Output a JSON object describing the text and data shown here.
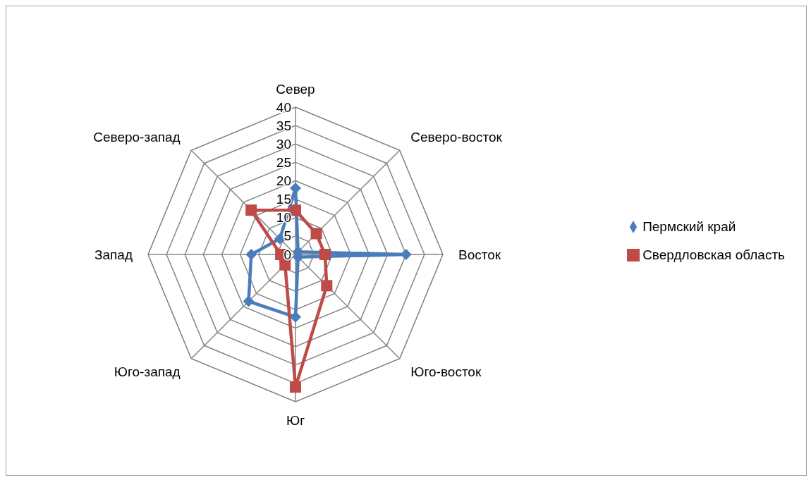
{
  "chart_data": {
    "type": "radar",
    "categories": [
      "Север",
      "Северо-восток",
      "Восток",
      "Юго-восток",
      "Юг",
      "Юго-запад",
      "Запад",
      "Северо-запад"
    ],
    "series": [
      {
        "name": "Пермский край",
        "color": "#4a7ebb",
        "values": [
          18,
          1,
          30,
          1,
          17,
          18,
          12,
          6
        ]
      },
      {
        "name": "Свердловская область",
        "color": "#be4b48",
        "values": [
          12,
          8,
          8,
          12,
          36,
          4,
          4,
          17
        ]
      }
    ],
    "ylim": [
      0,
      40
    ],
    "yticks": [
      0,
      5,
      10,
      15,
      20,
      25,
      30,
      35,
      40
    ],
    "grid": true,
    "legend": "right",
    "marker": "diamond"
  }
}
